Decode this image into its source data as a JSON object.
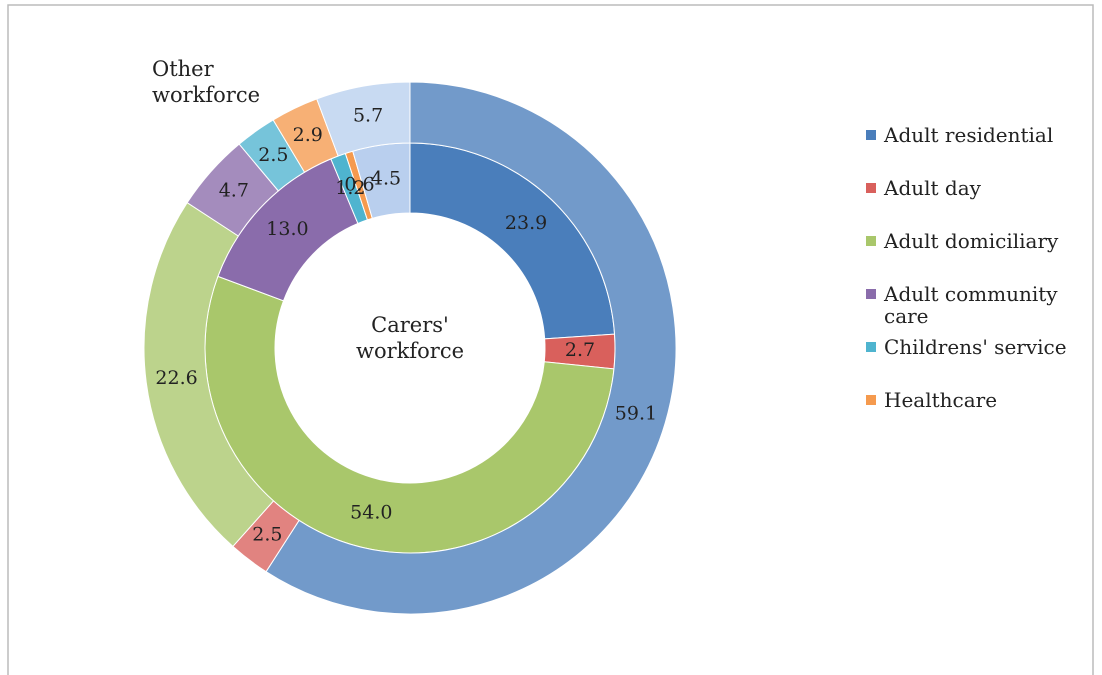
{
  "chart_data": {
    "type": "donut",
    "categories": [
      "Adult residential",
      "Adult day",
      "Adult domiciliary",
      "Adult community care",
      "Childrens' service",
      "Healthcare",
      null
    ],
    "colors": [
      "#4a7ebb",
      "#d9605c",
      "#a9c76b",
      "#8a6cab",
      "#4fb4cf",
      "#f59a4e",
      "#b9cfee"
    ],
    "series": [
      {
        "name": "Carers' workforce",
        "values": [
          23.9,
          2.7,
          54.0,
          13.0,
          1.2,
          0.6,
          4.5
        ],
        "value_labels": [
          "23.9",
          "2.7",
          "54.0",
          "13.0",
          "1.2",
          "0.6",
          "4.5"
        ]
      },
      {
        "name": "Other workforce",
        "values": [
          59.1,
          2.5,
          22.6,
          4.7,
          2.5,
          2.9,
          5.7
        ],
        "value_labels": [
          "59.1",
          "2.5",
          "22.6",
          "4.7",
          "2.5",
          "2.9",
          "5.7"
        ]
      }
    ],
    "legend": "right"
  }
}
